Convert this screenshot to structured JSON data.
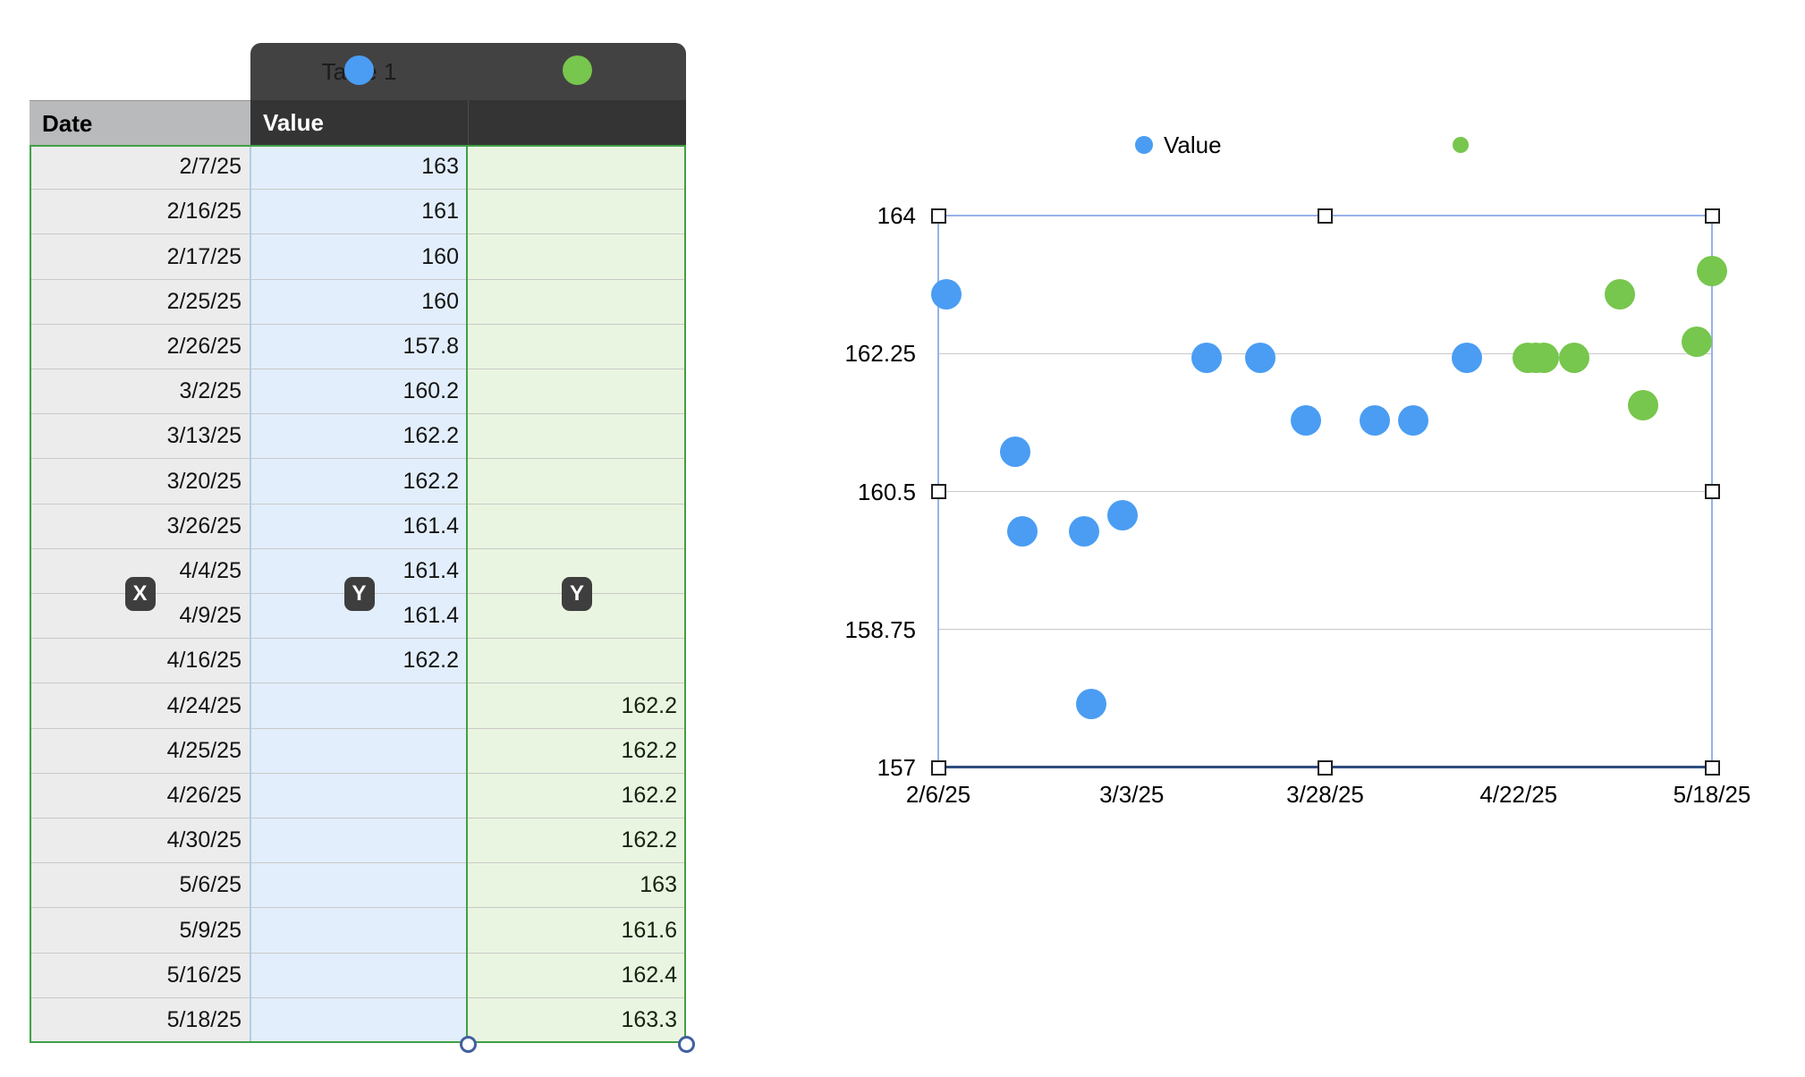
{
  "table": {
    "title": "Table 1",
    "header": {
      "date": "Date",
      "value": "Value",
      "value2": ""
    },
    "badge_x": "X",
    "badge_y1": "Y",
    "badge_y2": "Y",
    "rows": [
      [
        "2/7/25",
        "163",
        ""
      ],
      [
        "2/16/25",
        "161",
        ""
      ],
      [
        "2/17/25",
        "160",
        ""
      ],
      [
        "2/25/25",
        "160",
        ""
      ],
      [
        "2/26/25",
        "157.8",
        ""
      ],
      [
        "3/2/25",
        "160.2",
        ""
      ],
      [
        "3/13/25",
        "162.2",
        ""
      ],
      [
        "3/20/25",
        "162.2",
        ""
      ],
      [
        "3/26/25",
        "161.4",
        ""
      ],
      [
        "4/4/25",
        "161.4",
        ""
      ],
      [
        "4/9/25",
        "161.4",
        ""
      ],
      [
        "4/16/25",
        "162.2",
        ""
      ],
      [
        "4/24/25",
        "",
        "162.2"
      ],
      [
        "4/25/25",
        "",
        "162.2"
      ],
      [
        "4/26/25",
        "",
        "162.2"
      ],
      [
        "4/30/25",
        "",
        "162.2"
      ],
      [
        "5/6/25",
        "",
        "163"
      ],
      [
        "5/9/25",
        "",
        "161.6"
      ],
      [
        "5/16/25",
        "",
        "162.4"
      ],
      [
        "5/18/25",
        "",
        "163.3"
      ]
    ]
  },
  "chart_data": {
    "type": "scatter",
    "title": "",
    "legend": {
      "label": "Value",
      "position": "top"
    },
    "grid": "horizontal",
    "ylim": [
      157,
      164
    ],
    "xlim_dates": [
      "2/6/25",
      "5/18/25"
    ],
    "y_tick_labels": [
      "164",
      "162.25",
      "160.5",
      "158.75",
      "157"
    ],
    "x_tick_labels": [
      "2/6/25",
      "3/3/25",
      "3/28/25",
      "4/22/25",
      "5/18/25"
    ],
    "series": [
      {
        "name": "Value",
        "color": "#4a9df3",
        "points": [
          [
            "2/7/25",
            163
          ],
          [
            "2/16/25",
            161
          ],
          [
            "2/17/25",
            160
          ],
          [
            "2/25/25",
            160
          ],
          [
            "2/26/25",
            157.8
          ],
          [
            "3/2/25",
            160.2
          ],
          [
            "3/13/25",
            162.2
          ],
          [
            "3/20/25",
            162.2
          ],
          [
            "3/26/25",
            161.4
          ],
          [
            "4/4/25",
            161.4
          ],
          [
            "4/9/25",
            161.4
          ],
          [
            "4/16/25",
            162.2
          ]
        ]
      },
      {
        "name": "",
        "color": "#77c64d",
        "points": [
          [
            "4/24/25",
            162.2
          ],
          [
            "4/25/25",
            162.2
          ],
          [
            "4/26/25",
            162.2
          ],
          [
            "4/30/25",
            162.2
          ],
          [
            "5/6/25",
            163
          ],
          [
            "5/9/25",
            161.6
          ],
          [
            "5/16/25",
            162.4
          ],
          [
            "5/18/25",
            163.3
          ]
        ]
      }
    ]
  },
  "colors": {
    "series_blue": "#4a9df3",
    "series_green": "#77c64d",
    "table_green_border": "#3fa046",
    "axis_line": "#2e4d80",
    "selection_frame": "#97b2eb",
    "gridline": "#c9c9c9"
  }
}
